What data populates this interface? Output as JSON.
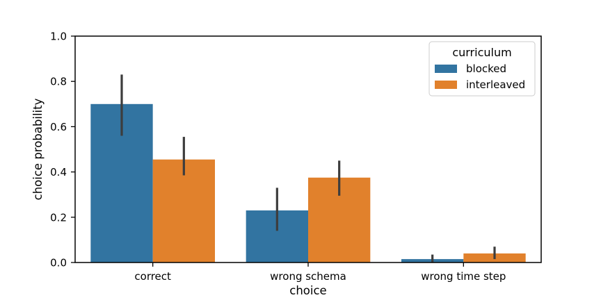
{
  "chart_data": {
    "type": "bar",
    "categories": [
      "correct",
      "wrong schema",
      "wrong time step"
    ],
    "series": [
      {
        "name": "blocked",
        "color": "#3274a1",
        "values": [
          0.7,
          0.23,
          0.015
        ],
        "ci_low": [
          0.56,
          0.14,
          0.0
        ],
        "ci_high": [
          0.83,
          0.33,
          0.035
        ]
      },
      {
        "name": "interleaved",
        "color": "#e1812c",
        "values": [
          0.455,
          0.375,
          0.04
        ],
        "ci_low": [
          0.385,
          0.295,
          0.015
        ],
        "ci_high": [
          0.555,
          0.45,
          0.07
        ]
      }
    ],
    "xlabel": "choice",
    "ylabel": "choice probability",
    "ylim": [
      0,
      1.0
    ],
    "yticks": [
      "0.0",
      "0.2",
      "0.4",
      "0.6",
      "0.8",
      "1.0"
    ],
    "legend": {
      "title": "curriculum",
      "placement": "top-right"
    },
    "grid": false,
    "errorbar_color": "#3d3d3d"
  }
}
